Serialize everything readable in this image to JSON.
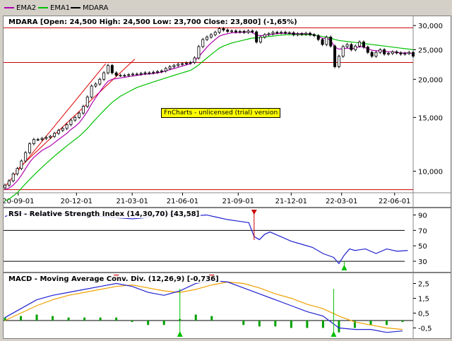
{
  "legend": [
    {
      "label": "EMA2",
      "color": "#b000b0"
    },
    {
      "label": "EMA1",
      "color": "#00c000"
    },
    {
      "label": "MDARA",
      "color": "#000000"
    }
  ],
  "watermark": "FnCharts - unlicensed (trial) version",
  "colors": {
    "ref_line": "#cc0000",
    "trend_line": "#dd0000",
    "rsi_line": "#2020d0",
    "macd_line": "#2020d0",
    "signal_line": "#f0a000",
    "hist": "#00a000",
    "buy_marker": "#00c000",
    "sell_marker": "#cc0000"
  },
  "chart_data": [
    {
      "type": "candlestick",
      "title": "MDARA [Open: 24,500  High: 24,500  Low: 23,700  Close: 23,800] (-1,65%)",
      "y_scale": "log",
      "ylim": [
        8500,
        31500
      ],
      "yticks": [
        10000,
        15000,
        20000,
        25000,
        30000
      ],
      "ytick_labels": [
        "10,000",
        "15,000",
        "20,000",
        "25,000",
        "30,000"
      ],
      "x_range": [
        0,
        154
      ],
      "xticks": [
        {
          "x": 5,
          "label": "20-09-01"
        },
        {
          "x": 27,
          "label": "20-12-01"
        },
        {
          "x": 48,
          "label": "21-03-01"
        },
        {
          "x": 67,
          "label": "21-06-01"
        },
        {
          "x": 88,
          "label": "21-09-01"
        },
        {
          "x": 108,
          "label": "21-12-01"
        },
        {
          "x": 127,
          "label": "22-03-01"
        },
        {
          "x": 147,
          "label": "22-06-01"
        }
      ],
      "reference_lines": [
        8700,
        22700,
        29500
      ],
      "trend_lines": [
        [
          [
            0,
            8900
          ],
          [
            38,
            22500
          ]
        ],
        [
          [
            4,
            10000
          ],
          [
            49,
            23300
          ]
        ]
      ],
      "closes": [
        9000,
        9300,
        9800,
        10200,
        10800,
        11500,
        12300,
        12700,
        12700,
        12800,
        12900,
        13000,
        13300,
        13600,
        13800,
        14200,
        14700,
        15000,
        15500,
        16300,
        17500,
        19000,
        19300,
        20000,
        21000,
        22200,
        21000,
        20600,
        20600,
        20600,
        20700,
        20800,
        20800,
        20900,
        21000,
        21000,
        21100,
        21200,
        21300,
        21700,
        22000,
        22200,
        22400,
        22500,
        22600,
        22700,
        23500,
        25600,
        27000,
        27500,
        28000,
        28500,
        29300,
        29000,
        28700,
        28800,
        28600,
        28700,
        28500,
        28800,
        28600,
        26500,
        27500,
        28000,
        28200,
        28500,
        28400,
        28500,
        28400,
        28400,
        28000,
        28200,
        28100,
        28300,
        28000,
        27800,
        27000,
        26000,
        27500,
        25700,
        22000,
        23800,
        25600,
        26000,
        25000,
        25700,
        26500,
        25500,
        24500,
        23800,
        24500,
        25000,
        24200,
        24300,
        24600,
        24400,
        24200,
        24300,
        24500,
        23800
      ],
      "emas": [
        {
          "name": "EMA2",
          "values": [
            8700,
            8800,
            9000,
            9300,
            9700,
            10200,
            10700,
            11100,
            11400,
            11700,
            11900,
            12100,
            12400,
            12700,
            13000,
            13300,
            13700,
            14000,
            14400,
            15000,
            15700,
            16600,
            17400,
            18200,
            19000,
            19700,
            20000,
            20100,
            20200,
            20300,
            20400,
            20500,
            20600,
            20700,
            20800,
            20800,
            20900,
            21000,
            21100,
            21300,
            21500,
            21700,
            21900,
            22100,
            22300,
            22500,
            23000,
            23700,
            24600,
            25500,
            26300,
            27000,
            27700,
            28000,
            28200,
            28400,
            28400,
            28500,
            28500,
            28600,
            28500,
            27900,
            27800,
            27900,
            28000,
            28100,
            28200,
            28300,
            28300,
            28300,
            28200,
            28200,
            28200,
            28200,
            28100,
            28000,
            27700,
            27200,
            27300,
            26800,
            25500,
            25100,
            25200,
            25300,
            25200,
            25300,
            25600,
            25500,
            25200,
            24900,
            24800,
            24800,
            24700,
            24600,
            24600,
            24500,
            24400,
            24400,
            24400,
            24300
          ]
        },
        {
          "name": "EMA1",
          "values": [
            8000,
            8100,
            8300,
            8500,
            8800,
            9100,
            9400,
            9700,
            10000,
            10300,
            10600,
            10900,
            11200,
            11500,
            11800,
            12100,
            12400,
            12700,
            13000,
            13400,
            13800,
            14300,
            14800,
            15300,
            15800,
            16300,
            16800,
            17200,
            17600,
            17900,
            18200,
            18500,
            18800,
            19000,
            19200,
            19400,
            19600,
            19800,
            20000,
            20200,
            20400,
            20600,
            20800,
            21000,
            21200,
            21400,
            21800,
            22300,
            22900,
            23500,
            24100,
            24700,
            25300,
            25700,
            26000,
            26300,
            26500,
            26700,
            26900,
            27100,
            27300,
            27300,
            27400,
            27500,
            27600,
            27700,
            27800,
            27900,
            28000,
            28000,
            28000,
            28000,
            28000,
            28000,
            28000,
            27900,
            27800,
            27600,
            27500,
            27300,
            27000,
            26800,
            26700,
            26600,
            26500,
            26400,
            26300,
            26200,
            26100,
            26000,
            25900,
            25800,
            25700,
            25600,
            25500,
            25400,
            25300,
            25200,
            25100,
            25000
          ]
        }
      ]
    },
    {
      "type": "line",
      "title": "RSI - Relative Strength Index (14,30,70) [43,58]",
      "ylim": [
        20,
        95
      ],
      "yticks": [
        30,
        50,
        70,
        90
      ],
      "ytick_labels": [
        "30",
        "50",
        "70",
        "90"
      ],
      "thresholds": [
        30,
        70
      ],
      "x": [
        0,
        4,
        8,
        12,
        16,
        20,
        24,
        28,
        32,
        36,
        40,
        44,
        48,
        52,
        56,
        60,
        64,
        68,
        72,
        76,
        80,
        84,
        88,
        92,
        94,
        96,
        98,
        100,
        104,
        108,
        112,
        116,
        120,
        124,
        126,
        128,
        130,
        132,
        136,
        140,
        144,
        148,
        152
      ],
      "values": [
        88,
        93,
        91,
        90,
        91,
        92,
        91,
        90,
        89,
        88,
        87,
        86,
        85,
        86,
        89,
        90,
        91,
        88,
        89,
        90,
        87,
        84,
        82,
        80,
        62,
        58,
        65,
        68,
        62,
        56,
        52,
        48,
        40,
        35,
        27,
        38,
        46,
        44,
        46,
        40,
        46,
        43,
        44
      ],
      "signals": [
        {
          "x": 94,
          "kind": "sell"
        },
        {
          "x": 128,
          "kind": "buy"
        }
      ]
    },
    {
      "type": "line",
      "title": "MACD - Moving Average Conv. Div. (12,26,9) [-0,736]",
      "ylim": [
        -1.0,
        3.0
      ],
      "yticks": [
        2.5,
        1.5,
        0.5,
        -0.5
      ],
      "ytick_labels": [
        "2,5",
        "1,5",
        "0,5",
        "-0,5"
      ],
      "x": [
        0,
        6,
        12,
        18,
        24,
        30,
        36,
        42,
        48,
        54,
        60,
        66,
        72,
        78,
        84,
        90,
        96,
        102,
        108,
        114,
        120,
        126,
        132,
        138,
        144,
        150
      ],
      "series": [
        {
          "name": "MACD",
          "values": [
            0.2,
            0.8,
            1.4,
            1.7,
            1.9,
            2.1,
            2.3,
            2.5,
            2.3,
            1.9,
            1.7,
            2.0,
            2.5,
            2.7,
            2.6,
            2.2,
            1.8,
            1.4,
            1.0,
            0.6,
            0.3,
            -0.5,
            -0.6,
            -0.6,
            -0.8,
            -0.7
          ]
        },
        {
          "name": "Signal",
          "values": [
            0.0,
            0.5,
            1.0,
            1.4,
            1.7,
            1.9,
            2.1,
            2.3,
            2.4,
            2.2,
            2.0,
            1.9,
            2.1,
            2.4,
            2.6,
            2.5,
            2.2,
            1.8,
            1.5,
            1.1,
            0.8,
            0.3,
            -0.1,
            -0.3,
            -0.5,
            -0.6
          ]
        },
        {
          "name": "Histogram",
          "values": [
            0.2,
            0.3,
            0.4,
            0.3,
            0.2,
            0.2,
            0.2,
            0.2,
            -0.1,
            -0.3,
            -0.3,
            0.1,
            0.4,
            0.3,
            0.0,
            -0.3,
            -0.4,
            -0.4,
            -0.5,
            -0.5,
            -0.5,
            -0.8,
            -0.5,
            -0.3,
            -0.3,
            -0.1
          ]
        }
      ],
      "signals": [
        {
          "x": 42,
          "kind": "sell"
        },
        {
          "x": 66,
          "kind": "buy"
        },
        {
          "x": 78,
          "kind": "sell"
        },
        {
          "x": 124,
          "kind": "buy"
        }
      ]
    }
  ]
}
